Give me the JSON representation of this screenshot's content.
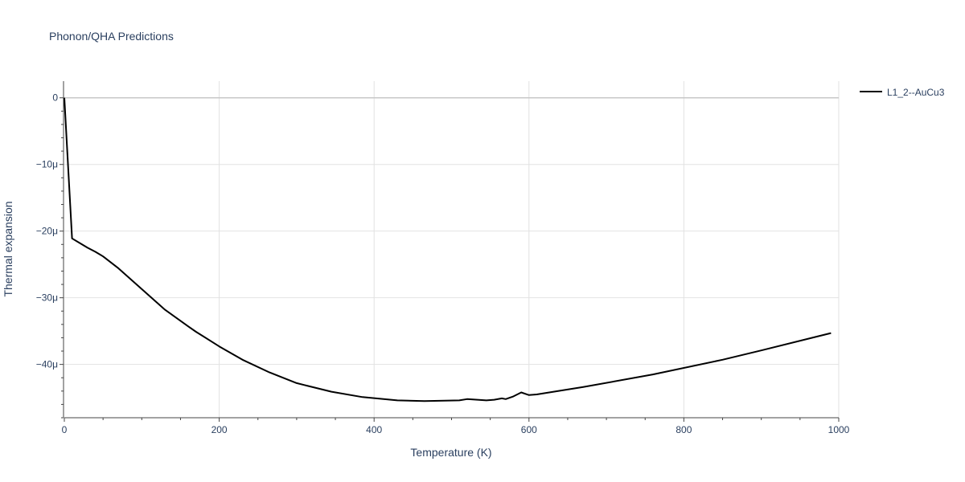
{
  "chart_data": {
    "type": "line",
    "title": "Phonon/QHA Predictions",
    "xlabel": "Temperature (K)",
    "ylabel": "Thermal expansion",
    "xlim": [
      0,
      1000
    ],
    "ylim": [
      -48,
      2.5
    ],
    "grid": true,
    "legend_position": "top-right",
    "x_ticks": [
      0,
      200,
      400,
      600,
      800,
      1000
    ],
    "x_tick_labels": [
      "0",
      "200",
      "400",
      "600",
      "800",
      "1000"
    ],
    "y_ticks": [
      0,
      -10,
      -20,
      -30,
      -40
    ],
    "y_tick_labels": [
      "0",
      "−10μ",
      "−20μ",
      "−30μ",
      "−40μ"
    ],
    "y_units": "μ",
    "series": [
      {
        "name": "L1_2--AuCu3",
        "color": "#000000",
        "x": [
          0,
          10,
          20,
          30,
          40,
          50,
          70,
          100,
          130,
          160,
          170,
          200,
          230,
          265,
          300,
          310,
          345,
          385,
          430,
          465,
          510,
          520,
          545,
          555,
          565,
          570,
          580,
          590,
          600,
          610,
          670,
          760,
          850,
          900,
          990
        ],
        "y": [
          0,
          -21.1,
          -21.8,
          -22.5,
          -23.1,
          -23.8,
          -25.6,
          -28.7,
          -31.8,
          -34.3,
          -35.1,
          -37.3,
          -39.3,
          -41.2,
          -42.8,
          -43.1,
          -44.1,
          -44.9,
          -45.4,
          -45.5,
          -45.4,
          -45.2,
          -45.4,
          -45.3,
          -45.1,
          -45.2,
          -44.8,
          -44.2,
          -44.6,
          -44.5,
          -43.4,
          -41.5,
          -39.3,
          -37.9,
          -35.3
        ]
      }
    ]
  }
}
